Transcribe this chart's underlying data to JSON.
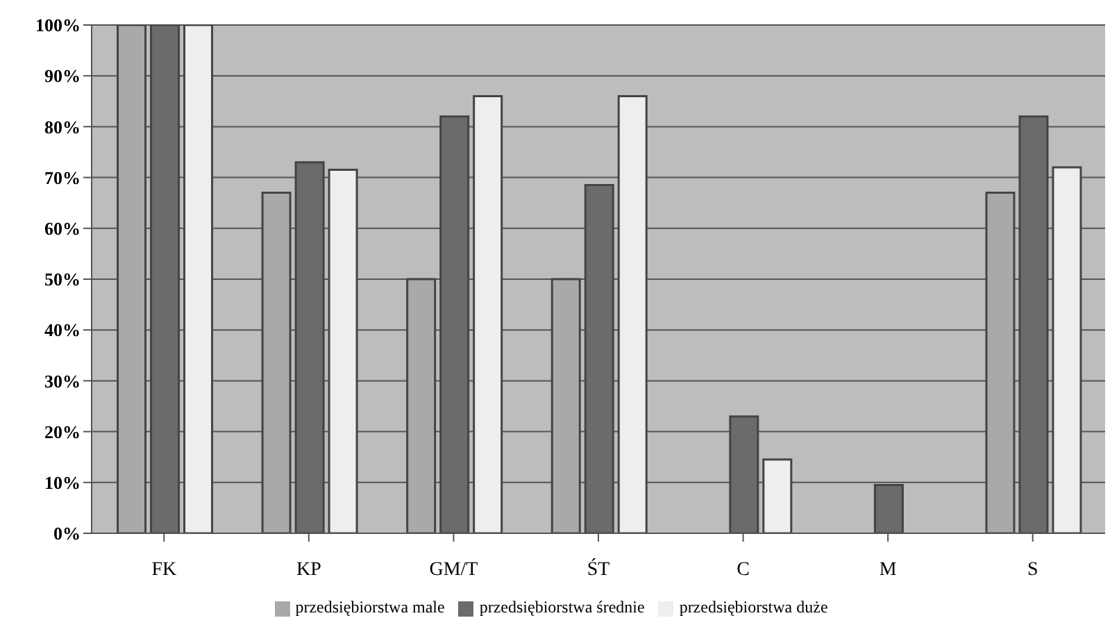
{
  "chart_data": {
    "type": "bar",
    "categories": [
      "FK",
      "KP",
      "GM/T",
      "ŚT",
      "C",
      "M",
      "S"
    ],
    "series": [
      {
        "name": "przedsiębiorstwa male",
        "color": "#a9a9a9",
        "values": [
          100,
          67,
          50,
          50,
          null,
          null,
          67
        ]
      },
      {
        "name": "przedsiębiorstwa średnie",
        "color": "#6b6b6b",
        "values": [
          100,
          73,
          82,
          68.5,
          23,
          9.5,
          82
        ]
      },
      {
        "name": "przedsiębiorstwa duże",
        "color": "#eeeeee",
        "values": [
          100,
          71.5,
          86,
          86,
          14.5,
          null,
          72
        ]
      }
    ],
    "ylim": [
      0,
      100
    ],
    "yticks": [
      {
        "value": 0,
        "label": "0%"
      },
      {
        "value": 10,
        "label": "10%"
      },
      {
        "value": 20,
        "label": "20%"
      },
      {
        "value": 30,
        "label": "30%"
      },
      {
        "value": 40,
        "label": "40%"
      },
      {
        "value": 50,
        "label": "50%"
      },
      {
        "value": 60,
        "label": "60%"
      },
      {
        "value": 70,
        "label": "70%"
      },
      {
        "value": 80,
        "label": "80%"
      },
      {
        "value": 90,
        "label": "90%"
      },
      {
        "value": 100,
        "label": "100%"
      }
    ],
    "grid": "y",
    "legend": "bottom"
  }
}
